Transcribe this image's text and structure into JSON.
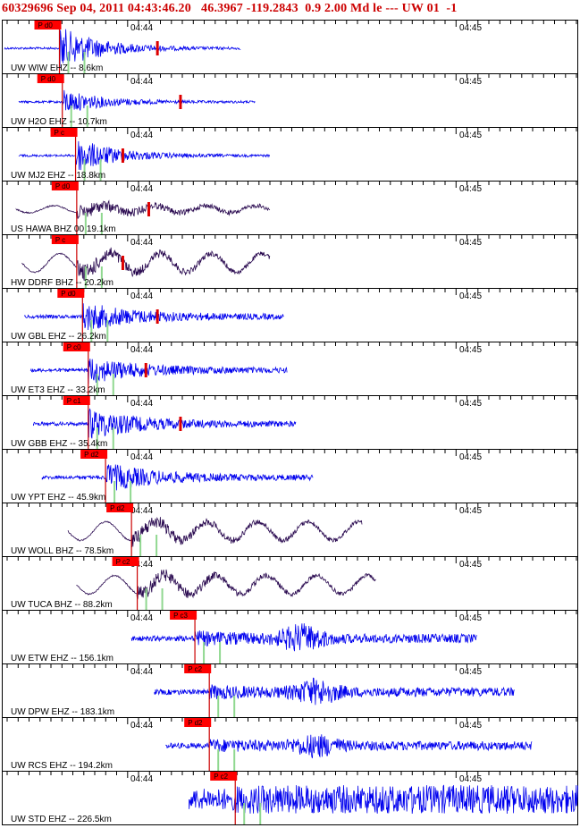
{
  "header": {
    "text": "60329696 Sep 04, 2011 04:43:46.20   46.3967 -119.2843  0.9 2.00 Md le --- UW 01  -1"
  },
  "time_labels": [
    "04:44",
    "04:45"
  ],
  "colors": {
    "header": "#cc0000",
    "trace_blue": "#0000ee",
    "trace_dark": "#2a0a50",
    "pick_box": "#ff0000",
    "pick_line": "#cc0000",
    "coda": "#dd0000",
    "green_marker": "#90d890",
    "grid": "#000000"
  },
  "traces": [
    {
      "label": "UW WIW EHZ -- 8.6km",
      "pick": "P d0",
      "color": "blue",
      "start": 0.005,
      "end": 0.415,
      "p": 0.1,
      "amp": 1.0,
      "env": "impulsive",
      "coda": 0.27
    },
    {
      "label": "UW H2O EHZ -- 10.7km",
      "pick": "P d0",
      "color": "blue",
      "start": 0.03,
      "end": 0.44,
      "p": 0.105,
      "amp": 0.55,
      "env": "impulsive",
      "coda": 0.31
    },
    {
      "label": "UW MJ2 EHZ -- 18.8km",
      "pick": "P c",
      "color": "blue",
      "start": 0.03,
      "end": 0.465,
      "p": 0.128,
      "amp": 0.8,
      "env": "impulsive",
      "coda": 0.21
    },
    {
      "label": "US HAWA BHZ 00 19.1km",
      "pick": "P d0",
      "color": "dark",
      "start": 0.025,
      "end": 0.465,
      "p": 0.13,
      "amp": 0.45,
      "env": "wavy",
      "coda": 0.255
    },
    {
      "label": "HW DDRF BHZ -- 20.2km",
      "pick": "P c",
      "color": "dark",
      "start": 0.035,
      "end": 0.465,
      "p": 0.13,
      "amp": 0.6,
      "env": "wavy",
      "coda": 0.21
    },
    {
      "label": "UW GBL EHZ -- 26.2km",
      "pick": "P d0",
      "color": "blue",
      "start": 0.04,
      "end": 0.49,
      "p": 0.14,
      "amp": 0.6,
      "env": "normal",
      "coda": 0.27
    },
    {
      "label": "UW ET3 EHZ -- 33.2km",
      "pick": "P c0",
      "color": "blue",
      "start": 0.05,
      "end": 0.495,
      "p": 0.15,
      "amp": 0.55,
      "env": "normal",
      "coda": 0.25
    },
    {
      "label": "UW GBB EHZ -- 35.4km",
      "pick": "P c1",
      "color": "blue",
      "start": 0.055,
      "end": 0.51,
      "p": 0.15,
      "amp": 0.65,
      "env": "normal",
      "coda": 0.31
    },
    {
      "label": "UW YPT EHZ -- 45.9km",
      "pick": "P d2",
      "color": "blue",
      "start": 0.07,
      "end": 0.54,
      "p": 0.18,
      "amp": 0.6,
      "env": "normal",
      "coda": null
    },
    {
      "label": "UW WOLL BHZ -- 78.5km",
      "pick": "P d2",
      "color": "dark",
      "start": 0.115,
      "end": 0.625,
      "p": 0.225,
      "amp": 0.55,
      "env": "wavy",
      "coda": null
    },
    {
      "label": "UW TUCA BHZ -- 88.2km",
      "pick": "P c2",
      "color": "dark",
      "start": 0.13,
      "end": 0.65,
      "p": 0.235,
      "amp": 0.55,
      "env": "wavy",
      "coda": null
    },
    {
      "label": "UW ETW EHZ -- 156.1km",
      "pick": "P c3",
      "color": "blue",
      "start": 0.225,
      "end": 0.825,
      "p": 0.335,
      "amp": 0.6,
      "env": "late",
      "coda": null
    },
    {
      "label": "UW DPW EHZ -- 183.1km",
      "pick": "P c2",
      "color": "blue",
      "start": 0.265,
      "end": 0.89,
      "p": 0.36,
      "amp": 0.55,
      "env": "late",
      "coda": null
    },
    {
      "label": "UW RCS EHZ -- 194.2km",
      "pick": "P d2",
      "color": "blue",
      "start": 0.285,
      "end": 0.92,
      "p": 0.36,
      "amp": 0.45,
      "env": "late",
      "coda": null
    },
    {
      "label": "UW STD EHZ -- 226.5km",
      "pick": "P c2",
      "color": "blue",
      "start": 0.325,
      "end": 1.0,
      "p": 0.405,
      "amp": 0.9,
      "env": "noisy",
      "coda": null
    }
  ]
}
